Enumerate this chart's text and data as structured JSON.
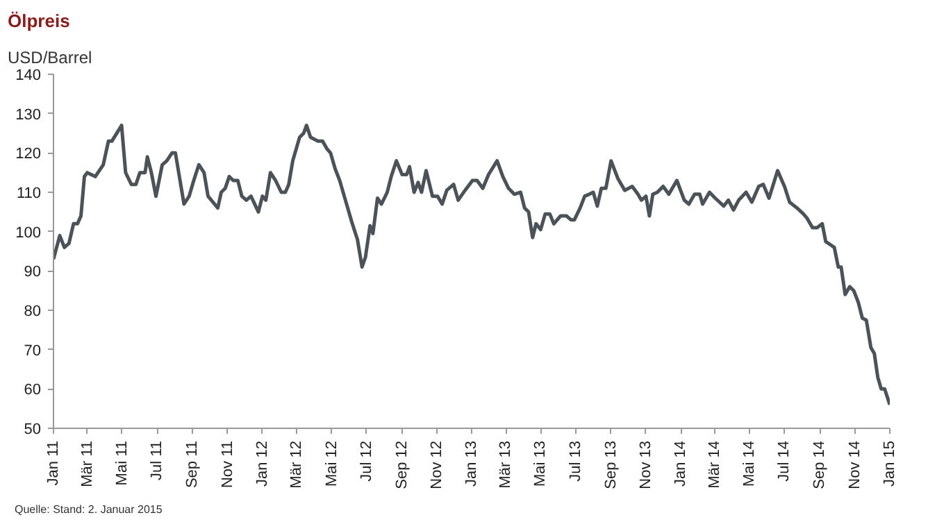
{
  "chart_data": {
    "type": "line",
    "title": "Ölpreis",
    "subtitle": "USD/Barrel",
    "annotations": [
      "Quelle: Stand: 2. Januar 2015"
    ],
    "x": [
      "2011-01-01",
      "2011-01-12",
      "2011-01-20",
      "2011-01-28",
      "2011-02-05",
      "2011-02-12",
      "2011-02-18",
      "2011-02-24",
      "2011-03-01",
      "2011-03-15",
      "2011-03-29",
      "2011-04-07",
      "2011-04-13",
      "2011-04-30",
      "2011-05-07",
      "2011-05-17",
      "2011-05-25",
      "2011-06-01",
      "2011-06-10",
      "2011-06-14",
      "2011-06-21",
      "2011-06-29",
      "2011-07-10",
      "2011-07-18",
      "2011-07-27",
      "2011-08-02",
      "2011-08-17",
      "2011-08-26",
      "2011-09-03",
      "2011-09-12",
      "2011-09-21",
      "2011-09-28",
      "2011-10-15",
      "2011-10-21",
      "2011-10-28",
      "2011-11-04",
      "2011-11-11",
      "2011-11-19",
      "2011-11-26",
      "2011-12-04",
      "2011-12-12",
      "2011-12-25",
      "2012-01-01",
      "2012-01-07",
      "2012-01-15",
      "2012-01-24",
      "2012-02-03",
      "2012-02-10",
      "2012-02-16",
      "2012-02-23",
      "2012-02-29",
      "2012-03-06",
      "2012-03-13",
      "2012-03-18",
      "2012-03-25",
      "2012-04-07",
      "2012-04-15",
      "2012-04-23",
      "2012-04-29",
      "2012-05-07",
      "2012-05-15",
      "2012-05-25",
      "2012-06-05",
      "2012-06-15",
      "2012-06-23",
      "2012-06-29",
      "2012-07-07",
      "2012-07-12",
      "2012-07-20",
      "2012-07-27",
      "2012-08-06",
      "2012-08-13",
      "2012-08-22",
      "2012-09-01",
      "2012-09-09",
      "2012-09-14",
      "2012-09-22",
      "2012-09-29",
      "2012-10-05",
      "2012-10-13",
      "2012-10-24",
      "2012-11-02",
      "2012-11-10",
      "2012-11-18",
      "2012-11-30",
      "2012-12-08",
      "2012-12-20",
      "2013-01-02",
      "2013-01-10",
      "2013-01-20",
      "2013-01-30",
      "2013-02-14",
      "2013-02-24",
      "2013-03-06",
      "2013-03-16",
      "2013-03-27",
      "2013-04-03",
      "2013-04-10",
      "2013-04-17",
      "2013-04-23",
      "2013-05-01",
      "2013-05-09",
      "2013-05-17",
      "2013-05-24",
      "2013-06-05",
      "2013-06-15",
      "2013-06-23",
      "2013-06-29",
      "2013-07-09",
      "2013-07-17",
      "2013-07-25",
      "2013-08-01",
      "2013-08-08",
      "2013-08-15",
      "2013-08-23",
      "2013-09-01",
      "2013-09-13",
      "2013-09-25",
      "2013-10-08",
      "2013-10-18",
      "2013-10-24",
      "2013-11-01",
      "2013-11-07",
      "2013-11-13",
      "2013-11-21",
      "2013-12-01",
      "2013-12-11",
      "2013-12-25",
      "2014-01-07",
      "2014-01-15",
      "2014-01-25",
      "2014-02-03",
      "2014-02-08",
      "2014-02-20",
      "2014-03-02",
      "2014-03-17",
      "2014-03-25",
      "2014-04-03",
      "2014-04-12",
      "2014-04-25",
      "2014-05-05",
      "2014-05-17",
      "2014-05-25",
      "2014-06-04",
      "2014-06-19",
      "2014-07-01",
      "2014-07-10",
      "2014-07-23",
      "2014-08-03",
      "2014-08-09",
      "2014-08-19",
      "2014-08-27",
      "2014-09-05",
      "2014-09-11",
      "2014-09-21",
      "2014-09-26",
      "2014-10-03",
      "2014-10-08",
      "2014-10-15",
      "2014-10-23",
      "2014-10-30",
      "2014-11-07",
      "2014-11-14",
      "2014-11-21",
      "2014-11-29",
      "2014-12-05",
      "2014-12-11",
      "2014-12-17",
      "2014-12-23",
      "2015-01-01"
    ],
    "series": [
      {
        "color": "#4b5359",
        "values": [
          93,
          99,
          96,
          97,
          102,
          102,
          104,
          114,
          115,
          114,
          117,
          123,
          123,
          127,
          115,
          112,
          112,
          115,
          115,
          119,
          115,
          109,
          117,
          118,
          120,
          120,
          107,
          109,
          113,
          117,
          115,
          109,
          106,
          110,
          111,
          114,
          113,
          113,
          109,
          108,
          109,
          105,
          109,
          108,
          115,
          113,
          110,
          110,
          112,
          118,
          121,
          124,
          125,
          127,
          124,
          123,
          123,
          121,
          120,
          116,
          113,
          108,
          102.5,
          98,
          91,
          93.5,
          101.5,
          99.5,
          108.5,
          107,
          110,
          114,
          118,
          114.5,
          114.5,
          116.5,
          110,
          112.5,
          110,
          115.5,
          109,
          109,
          107,
          110.5,
          112,
          108,
          110.5,
          113,
          113,
          111,
          114.5,
          118,
          114,
          111,
          109.5,
          110,
          106,
          105,
          98.5,
          102,
          100.5,
          104.5,
          104.5,
          102,
          104,
          104,
          103,
          103,
          106,
          109,
          109.5,
          110,
          106.5,
          111,
          111,
          118,
          113.5,
          110.5,
          111.5,
          109.5,
          108,
          109,
          104,
          109.5,
          110,
          111.5,
          109.5,
          113,
          108,
          107,
          109.5,
          109.5,
          107,
          110,
          108.5,
          106.5,
          108,
          105.5,
          108,
          110,
          107.5,
          111.5,
          112,
          108.5,
          115.5,
          111.5,
          107.5,
          106,
          104.5,
          103.5,
          101,
          101,
          102,
          97.5,
          96.5,
          96,
          91,
          91,
          84,
          86,
          85,
          82,
          78,
          77.5,
          70.5,
          69,
          63,
          60,
          60,
          56
        ]
      }
    ],
    "xlim": [
      "2011-01-01",
      "2015-01-01"
    ],
    "xticks": [
      {
        "value": "2011-01-01",
        "label": "Jan 11"
      },
      {
        "value": "2011-03-01",
        "label": "Mär 11"
      },
      {
        "value": "2011-05-01",
        "label": "Mai 11"
      },
      {
        "value": "2011-07-01",
        "label": "Jul 11"
      },
      {
        "value": "2011-09-01",
        "label": "Sep 11"
      },
      {
        "value": "2011-11-01",
        "label": "Nov 11"
      },
      {
        "value": "2012-01-01",
        "label": "Jan 12"
      },
      {
        "value": "2012-03-01",
        "label": "Mär 12"
      },
      {
        "value": "2012-05-01",
        "label": "Mai 12"
      },
      {
        "value": "2012-07-01",
        "label": "Jul 12"
      },
      {
        "value": "2012-09-01",
        "label": "Sep 12"
      },
      {
        "value": "2012-11-01",
        "label": "Nov 12"
      },
      {
        "value": "2013-01-01",
        "label": "Jan 13"
      },
      {
        "value": "2013-03-01",
        "label": "Mär 13"
      },
      {
        "value": "2013-05-01",
        "label": "Mai 13"
      },
      {
        "value": "2013-07-01",
        "label": "Jul 13"
      },
      {
        "value": "2013-09-01",
        "label": "Sep 13"
      },
      {
        "value": "2013-11-01",
        "label": "Nov 13"
      },
      {
        "value": "2014-01-01",
        "label": "Jan 14"
      },
      {
        "value": "2014-03-01",
        "label": "Mär 14"
      },
      {
        "value": "2014-05-01",
        "label": "Mai 14"
      },
      {
        "value": "2014-07-01",
        "label": "Jul 14"
      },
      {
        "value": "2014-09-01",
        "label": "Sep 14"
      },
      {
        "value": "2014-11-01",
        "label": "Nov 14"
      },
      {
        "value": "2015-01-01",
        "label": "Jan 15"
      }
    ],
    "ylim": [
      50,
      140
    ],
    "yticks": [
      50,
      60,
      70,
      80,
      90,
      100,
      110,
      120,
      130,
      140
    ],
    "marker": "none",
    "line_style": "solid"
  }
}
